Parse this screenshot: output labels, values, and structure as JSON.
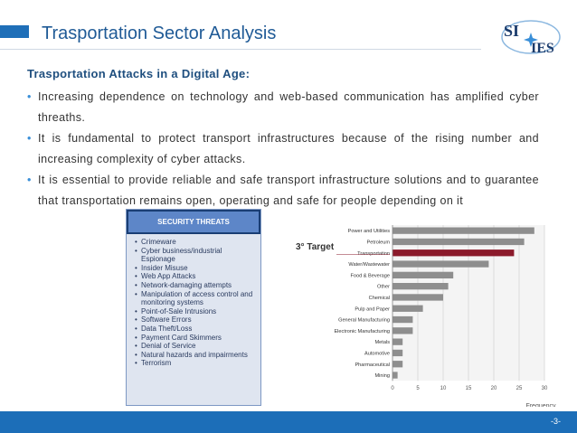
{
  "slide": {
    "title": "Trasportation Sector Analysis",
    "page_number": "-3-",
    "logo": {
      "text_top": "SI",
      "text_bottom": "IES",
      "colors": {
        "text": "#1a3a6b",
        "accent": "#3a8fd8",
        "ring": "#8cb8e0"
      }
    }
  },
  "content": {
    "heading": "Trasportation Attacks in a Digital Age:",
    "bullets": [
      "Increasing dependence on technology and web-based communication has amplified cyber threaths.",
      "It is fundamental to protect transport infrastructures because of the rising number and increasing complexity of cyber attacks.",
      "It is essential to  provide reliable and safe transport infrastructure solutions and to guarantee that transportation remains open, operating and safe for people depending on it"
    ]
  },
  "threats": {
    "header": "SECURITY THREATS",
    "items": [
      "Crimeware",
      "Cyber business/industrial Espionage",
      "Insider Misuse",
      "Web App Attacks",
      "Network-damaging attempts",
      "Manipulation of access control and monitoring systems",
      "Point-of-Sale Intrusions",
      "Software Errors",
      "Data Theft/Loss",
      "Payment Card Skimmers",
      "Denial of Service",
      "Natural hazards and impairments",
      "Terrorism"
    ]
  },
  "annotation": {
    "target_label": "3° Target"
  },
  "chart_data": {
    "type": "bar",
    "orientation": "horizontal",
    "categories": [
      "Power and Utilities",
      "Petroleum",
      "Transportation",
      "Water/Wastewater",
      "Food & Beverage",
      "Other",
      "Chemical",
      "Pulp and Paper",
      "General Manufacturing",
      "Electronic Manufacturing",
      "Metals",
      "Automotive",
      "Pharmaceutical",
      "Mining"
    ],
    "values": [
      28,
      26,
      24,
      19,
      12,
      11,
      10,
      6,
      4,
      4,
      2,
      2,
      2,
      1
    ],
    "highlight_category": "Transportation",
    "xlabel": "Frequency",
    "xlim": [
      0,
      30
    ],
    "xticks": [
      0,
      5,
      10,
      15,
      20,
      25,
      30
    ],
    "grid": true,
    "colors": {
      "bar": "#8e8e8e",
      "highlight": "#8b1a2b"
    }
  }
}
